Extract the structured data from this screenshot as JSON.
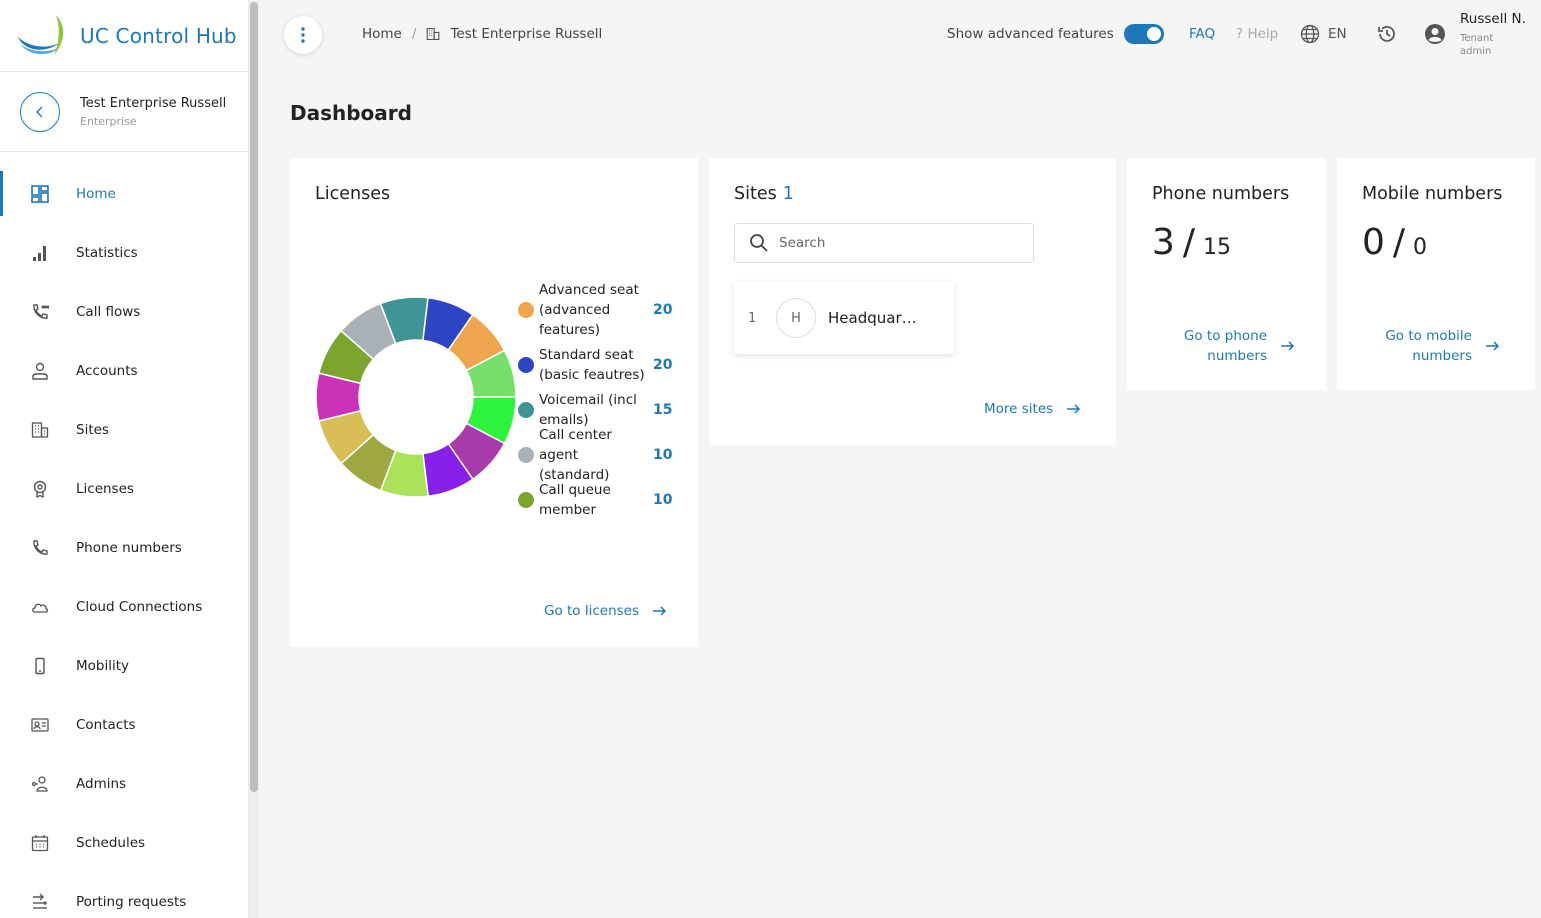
{
  "app": {
    "name": "UC Control Hub"
  },
  "tenant": {
    "name": "Test Enterprise Russell",
    "type": "Enterprise"
  },
  "sidebar": {
    "items": [
      {
        "label": "Home",
        "icon": "dashboard-icon",
        "active": true
      },
      {
        "label": "Statistics",
        "icon": "statistics-icon"
      },
      {
        "label": "Call flows",
        "icon": "call-flows-icon"
      },
      {
        "label": "Accounts",
        "icon": "accounts-icon"
      },
      {
        "label": "Sites",
        "icon": "sites-icon"
      },
      {
        "label": "Licenses",
        "icon": "licenses-icon"
      },
      {
        "label": "Phone numbers",
        "icon": "phone-icon"
      },
      {
        "label": "Cloud Connections",
        "icon": "cloud-icon"
      },
      {
        "label": "Mobility",
        "icon": "mobile-icon"
      },
      {
        "label": "Contacts",
        "icon": "contacts-icon"
      },
      {
        "label": "Admins",
        "icon": "admins-icon"
      },
      {
        "label": "Schedules",
        "icon": "calendar-icon"
      },
      {
        "label": "Porting requests",
        "icon": "porting-icon"
      }
    ]
  },
  "header": {
    "breadcrumb": {
      "home": "Home",
      "separator": "/",
      "current": "Test Enterprise Russell"
    },
    "advanced_label": "Show advanced features",
    "advanced_enabled": true,
    "faq": "FAQ",
    "help": "Help",
    "help_prefix": "?",
    "language": "EN",
    "user": {
      "name": "Russell N.",
      "role": "Tenant admin"
    }
  },
  "page": {
    "title": "Dashboard"
  },
  "licenses": {
    "title": "Licenses",
    "link": "Go to licenses",
    "legend": [
      {
        "label": "Advanced seat (advanced features)",
        "value": "20",
        "color": "#f0a64f"
      },
      {
        "label": "Standard seat (basic feautres)",
        "value": "20",
        "color": "#2f46c4"
      },
      {
        "label": "Voicemail (incl emails)",
        "value": "15",
        "color": "#3f9595"
      },
      {
        "label": "Call center agent (standard)",
        "value": "10",
        "color": "#aab1b6"
      },
      {
        "label": "Call queue member",
        "value": "10",
        "color": "#7ba52e"
      }
    ],
    "segments": [
      {
        "color": "#2f46c4"
      },
      {
        "color": "#f0a64f"
      },
      {
        "color": "#76de6a"
      },
      {
        "color": "#2cf33c"
      },
      {
        "color": "#a73ba9"
      },
      {
        "color": "#8920e8"
      },
      {
        "color": "#aae35a"
      },
      {
        "color": "#9ea742"
      },
      {
        "color": "#d9bd57"
      },
      {
        "color": "#c934b6"
      },
      {
        "color": "#7ba52e"
      },
      {
        "color": "#aab1b6"
      },
      {
        "color": "#3f9595"
      }
    ]
  },
  "sites": {
    "title": "Sites",
    "count": "1",
    "search_placeholder": "Search",
    "items": [
      {
        "index": "1",
        "initial": "H",
        "name": "Headquar…"
      }
    ],
    "more_link": "More sites"
  },
  "phone_numbers": {
    "title": "Phone numbers",
    "used": "3",
    "total": "15",
    "link": "Go to phone numbers"
  },
  "mobile_numbers": {
    "title": "Mobile numbers",
    "used": "0",
    "total": "0",
    "link": "Go to mobile numbers"
  },
  "colors": {
    "accent": "#1d77b8",
    "background": "#f5f5f5"
  }
}
